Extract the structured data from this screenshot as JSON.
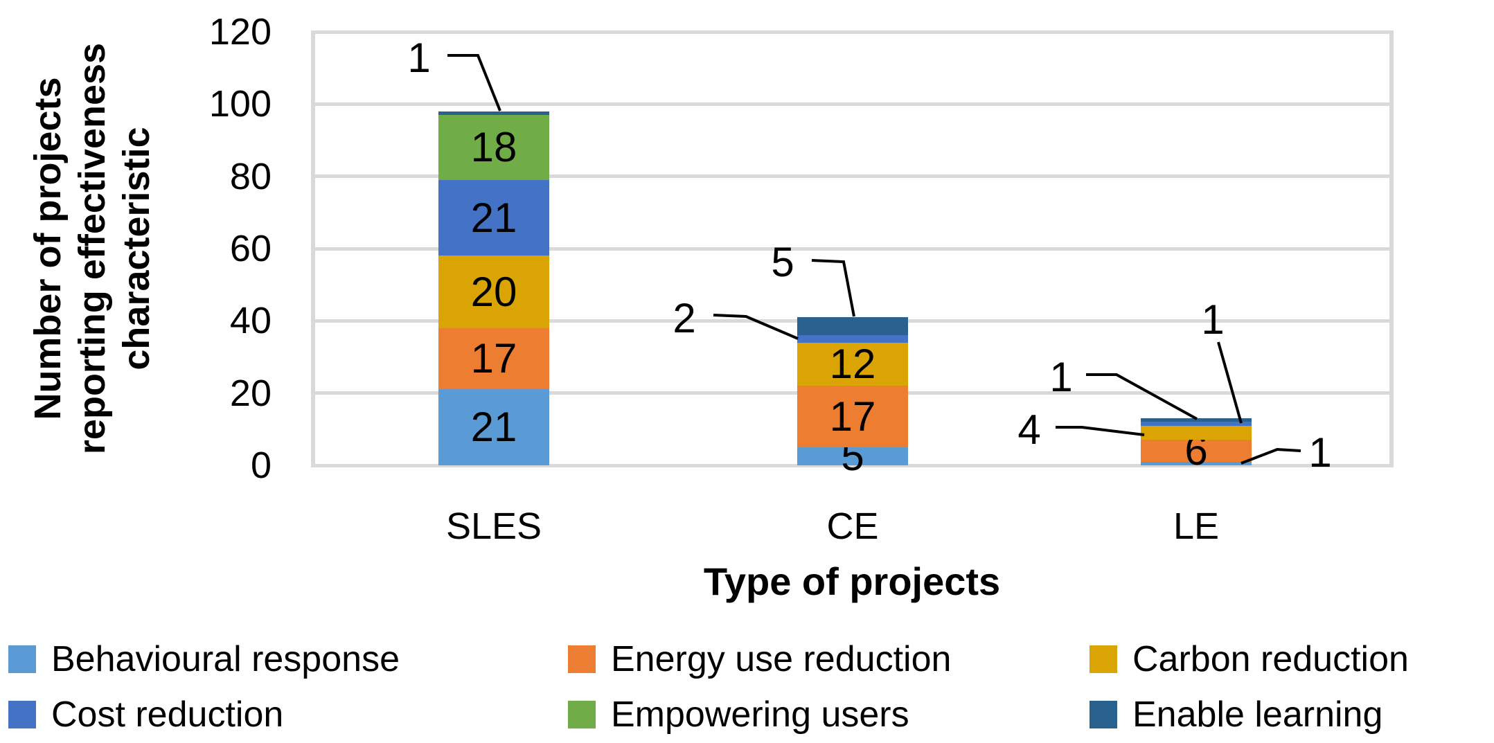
{
  "chart_data": {
    "type": "bar",
    "stacked": true,
    "title": "",
    "xlabel": "Type of projects",
    "ylabel": "Number of projects reporting effectiveness characteristic",
    "ylabel_lines": [
      "Number of projects",
      "reporting effectiveness",
      "characteristic"
    ],
    "categories": [
      "SLES",
      "CE",
      "LE"
    ],
    "series": [
      {
        "name": "Behavioural response",
        "color": "#5B9BD5",
        "values": [
          21,
          5,
          1
        ]
      },
      {
        "name": "Energy use reduction",
        "color": "#ED7D31",
        "values": [
          17,
          17,
          6
        ]
      },
      {
        "name": "Carbon reduction",
        "color": "#D9A404",
        "values": [
          20,
          12,
          4
        ]
      },
      {
        "name": "Cost reduction",
        "color": "#4472C4",
        "values": [
          21,
          2,
          1
        ]
      },
      {
        "name": "Empowering users",
        "color": "#70AD47",
        "values": [
          18,
          0,
          0
        ]
      },
      {
        "name": "Enable learning",
        "color": "#2A628F",
        "values": [
          1,
          5,
          1
        ]
      }
    ],
    "yticks": [
      0,
      20,
      40,
      60,
      80,
      100,
      120
    ],
    "ylim": [
      0,
      120
    ],
    "grid": true,
    "gridline_color": "#D9D9D9",
    "data_label_color": "#000000",
    "legend_position": "bottom",
    "legend_rows": 2,
    "callouts": [
      {
        "category": "SLES",
        "series": "Enable learning",
        "value": "1"
      },
      {
        "category": "CE",
        "series": "Cost reduction",
        "value": "2"
      },
      {
        "category": "CE",
        "series": "Enable learning",
        "value": "5"
      },
      {
        "category": "LE",
        "series": "Behavioural response",
        "value": "1"
      },
      {
        "category": "LE",
        "series": "Carbon reduction",
        "value": "4"
      },
      {
        "category": "LE",
        "series": "Cost reduction",
        "value": "1"
      },
      {
        "category": "LE",
        "series": "Enable learning",
        "value": "1"
      }
    ]
  }
}
